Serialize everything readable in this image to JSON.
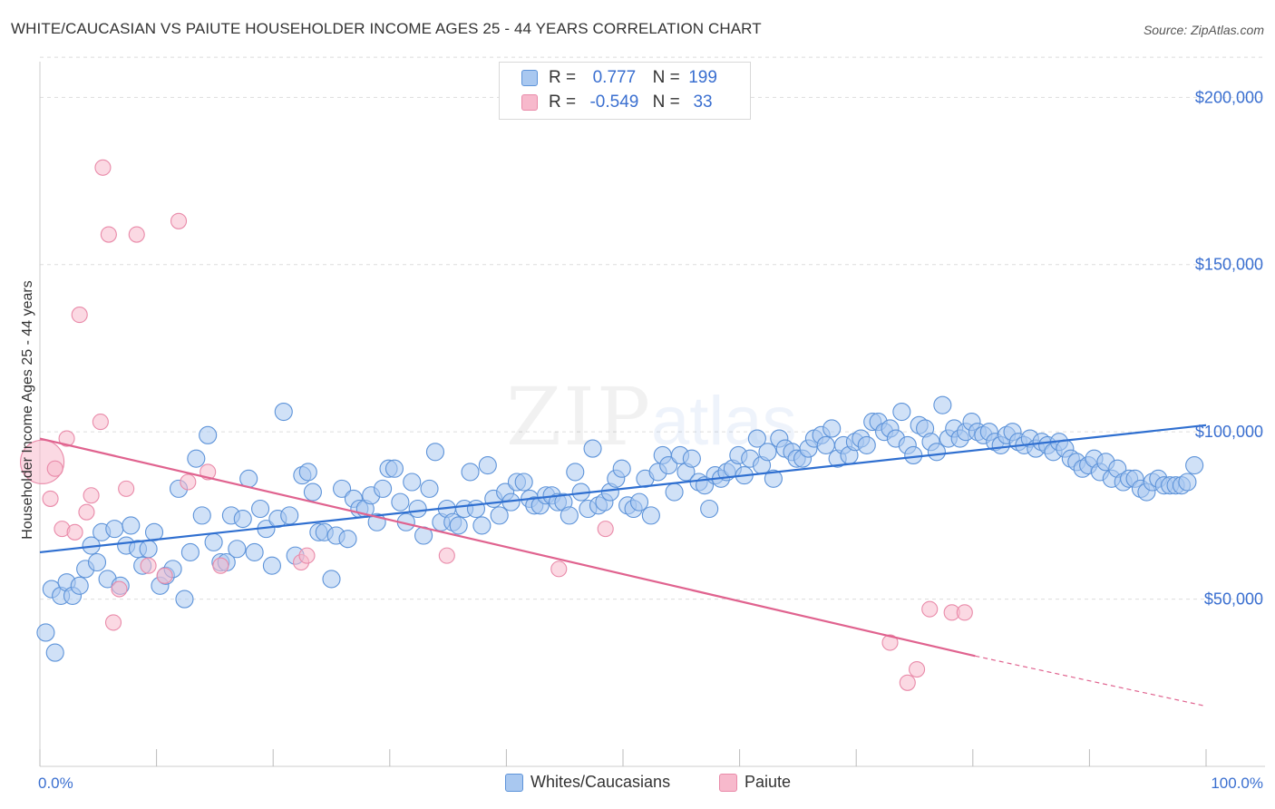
{
  "header": {
    "title": "WHITE/CAUCASIAN VS PAIUTE HOUSEHOLDER INCOME AGES 25 - 44 YEARS CORRELATION CHART",
    "source": "Source: ZipAtlas.com"
  },
  "legend": {
    "rows": [
      {
        "r_label": "R =",
        "r_value": "0.777",
        "n_label": "N =",
        "n_value": "199"
      },
      {
        "r_label": "R =",
        "r_value": "-0.549",
        "n_label": "N =",
        "n_value": "33"
      }
    ]
  },
  "bottom_legend": [
    "Whites/Caucasians",
    "Paiute"
  ],
  "colors": {
    "blue_fill": "#a9c8f0",
    "blue_stroke": "#5d93d9",
    "blue_line": "#2f6fd0",
    "pink_fill": "#f7b9cc",
    "pink_stroke": "#e98aa9",
    "pink_line": "#e0638f",
    "label": "#3a6fd0"
  },
  "chart_data": {
    "type": "scatter",
    "title": "WHITE/CAUCASIAN VS PAIUTE HOUSEHOLDER INCOME AGES 25 - 44 YEARS CORRELATION CHART",
    "xlabel": "",
    "ylabel": "Householder Income Ages 25 - 44 years",
    "xlim": [
      0,
      100
    ],
    "ylim": [
      0,
      215000
    ],
    "x_tick_labels": [
      "0.0%",
      "100.0%"
    ],
    "y_ticks": [
      50000,
      100000,
      150000,
      200000
    ],
    "y_tick_labels": [
      "$50,000",
      "$100,000",
      "$150,000",
      "$200,000"
    ],
    "grid": true,
    "watermark": "ZIPatlas",
    "series": [
      {
        "name": "Whites/Caucasians",
        "r": 0.777,
        "n": 199,
        "trend": {
          "x": [
            0,
            100
          ],
          "y": [
            64000,
            102000
          ]
        },
        "points": [
          [
            0.5,
            40000
          ],
          [
            1.0,
            53000
          ],
          [
            1.3,
            34000
          ],
          [
            1.8,
            51000
          ],
          [
            2.3,
            55000
          ],
          [
            2.8,
            51000
          ],
          [
            3.4,
            54000
          ],
          [
            3.9,
            59000
          ],
          [
            4.4,
            66000
          ],
          [
            4.9,
            61000
          ],
          [
            5.3,
            70000
          ],
          [
            5.8,
            56000
          ],
          [
            6.4,
            71000
          ],
          [
            6.9,
            54000
          ],
          [
            7.4,
            66000
          ],
          [
            7.8,
            72000
          ],
          [
            8.4,
            65000
          ],
          [
            8.8,
            60000
          ],
          [
            9.3,
            65000
          ],
          [
            9.8,
            70000
          ],
          [
            10.3,
            54000
          ],
          [
            10.8,
            57000
          ],
          [
            11.4,
            59000
          ],
          [
            11.9,
            83000
          ],
          [
            12.4,
            50000
          ],
          [
            12.9,
            64000
          ],
          [
            13.4,
            92000
          ],
          [
            13.9,
            75000
          ],
          [
            14.4,
            99000
          ],
          [
            14.9,
            67000
          ],
          [
            15.5,
            61000
          ],
          [
            16.0,
            61000
          ],
          [
            16.4,
            75000
          ],
          [
            16.9,
            65000
          ],
          [
            17.4,
            74000
          ],
          [
            17.9,
            86000
          ],
          [
            18.4,
            64000
          ],
          [
            18.9,
            77000
          ],
          [
            19.4,
            71000
          ],
          [
            19.9,
            60000
          ],
          [
            20.4,
            74000
          ],
          [
            20.9,
            106000
          ],
          [
            21.4,
            75000
          ],
          [
            21.9,
            63000
          ],
          [
            22.5,
            87000
          ],
          [
            23.0,
            88000
          ],
          [
            23.4,
            82000
          ],
          [
            23.9,
            70000
          ],
          [
            24.4,
            70000
          ],
          [
            25.0,
            56000
          ],
          [
            25.4,
            69000
          ],
          [
            25.9,
            83000
          ],
          [
            26.4,
            68000
          ],
          [
            26.9,
            80000
          ],
          [
            27.4,
            77000
          ],
          [
            27.9,
            77000
          ],
          [
            28.4,
            81000
          ],
          [
            28.9,
            73000
          ],
          [
            29.4,
            83000
          ],
          [
            29.9,
            89000
          ],
          [
            30.4,
            89000
          ],
          [
            30.9,
            79000
          ],
          [
            31.4,
            73000
          ],
          [
            31.9,
            85000
          ],
          [
            32.4,
            77000
          ],
          [
            32.9,
            69000
          ],
          [
            33.4,
            83000
          ],
          [
            33.9,
            94000
          ],
          [
            34.4,
            73000
          ],
          [
            34.9,
            77000
          ],
          [
            35.4,
            73000
          ],
          [
            35.9,
            72000
          ],
          [
            36.4,
            77000
          ],
          [
            36.9,
            88000
          ],
          [
            37.4,
            77000
          ],
          [
            37.9,
            72000
          ],
          [
            38.4,
            90000
          ],
          [
            38.9,
            80000
          ],
          [
            39.4,
            75000
          ],
          [
            39.9,
            82000
          ],
          [
            40.4,
            79000
          ],
          [
            40.9,
            85000
          ],
          [
            41.5,
            85000
          ],
          [
            42.0,
            80000
          ],
          [
            42.4,
            78000
          ],
          [
            42.9,
            78000
          ],
          [
            43.4,
            81000
          ],
          [
            43.9,
            81000
          ],
          [
            44.4,
            79000
          ],
          [
            44.9,
            79000
          ],
          [
            45.4,
            75000
          ],
          [
            45.9,
            88000
          ],
          [
            46.4,
            82000
          ],
          [
            47.0,
            77000
          ],
          [
            47.4,
            95000
          ],
          [
            47.9,
            78000
          ],
          [
            48.4,
            79000
          ],
          [
            48.9,
            82000
          ],
          [
            49.4,
            86000
          ],
          [
            49.9,
            89000
          ],
          [
            50.4,
            78000
          ],
          [
            50.9,
            77000
          ],
          [
            51.4,
            79000
          ],
          [
            51.9,
            86000
          ],
          [
            52.4,
            75000
          ],
          [
            53.0,
            88000
          ],
          [
            53.4,
            93000
          ],
          [
            53.9,
            90000
          ],
          [
            54.4,
            82000
          ],
          [
            54.9,
            93000
          ],
          [
            55.4,
            88000
          ],
          [
            55.9,
            92000
          ],
          [
            56.5,
            85000
          ],
          [
            57.0,
            84000
          ],
          [
            57.4,
            77000
          ],
          [
            57.9,
            87000
          ],
          [
            58.4,
            86000
          ],
          [
            58.9,
            88000
          ],
          [
            59.4,
            89000
          ],
          [
            59.9,
            93000
          ],
          [
            60.4,
            87000
          ],
          [
            60.9,
            92000
          ],
          [
            61.5,
            98000
          ],
          [
            61.9,
            90000
          ],
          [
            62.4,
            94000
          ],
          [
            62.9,
            86000
          ],
          [
            63.4,
            98000
          ],
          [
            63.9,
            95000
          ],
          [
            64.5,
            94000
          ],
          [
            64.9,
            92000
          ],
          [
            65.4,
            92000
          ],
          [
            65.9,
            95000
          ],
          [
            66.4,
            98000
          ],
          [
            67.0,
            99000
          ],
          [
            67.4,
            96000
          ],
          [
            67.9,
            101000
          ],
          [
            68.4,
            92000
          ],
          [
            68.9,
            96000
          ],
          [
            69.4,
            93000
          ],
          [
            69.9,
            97000
          ],
          [
            70.4,
            98000
          ],
          [
            70.9,
            96000
          ],
          [
            71.4,
            103000
          ],
          [
            71.9,
            103000
          ],
          [
            72.4,
            100000
          ],
          [
            72.9,
            101000
          ],
          [
            73.4,
            98000
          ],
          [
            73.9,
            106000
          ],
          [
            74.4,
            96000
          ],
          [
            74.9,
            93000
          ],
          [
            75.4,
            102000
          ],
          [
            75.9,
            101000
          ],
          [
            76.4,
            97000
          ],
          [
            76.9,
            94000
          ],
          [
            77.4,
            108000
          ],
          [
            77.9,
            98000
          ],
          [
            78.4,
            101000
          ],
          [
            78.9,
            98000
          ],
          [
            79.4,
            100000
          ],
          [
            79.9,
            103000
          ],
          [
            80.4,
            100000
          ],
          [
            80.9,
            99000
          ],
          [
            81.4,
            100000
          ],
          [
            81.9,
            97000
          ],
          [
            82.4,
            96000
          ],
          [
            82.9,
            99000
          ],
          [
            83.4,
            100000
          ],
          [
            83.9,
            97000
          ],
          [
            84.4,
            96000
          ],
          [
            84.9,
            98000
          ],
          [
            85.4,
            95000
          ],
          [
            85.9,
            97000
          ],
          [
            86.4,
            96000
          ],
          [
            86.9,
            94000
          ],
          [
            87.4,
            97000
          ],
          [
            87.9,
            95000
          ],
          [
            88.4,
            92000
          ],
          [
            88.9,
            91000
          ],
          [
            89.4,
            89000
          ],
          [
            89.9,
            90000
          ],
          [
            90.4,
            92000
          ],
          [
            90.9,
            88000
          ],
          [
            91.4,
            91000
          ],
          [
            91.9,
            86000
          ],
          [
            92.4,
            89000
          ],
          [
            92.9,
            85000
          ],
          [
            93.4,
            86000
          ],
          [
            93.9,
            86000
          ],
          [
            94.4,
            83000
          ],
          [
            94.9,
            82000
          ],
          [
            95.4,
            85000
          ],
          [
            95.9,
            86000
          ],
          [
            96.4,
            84000
          ],
          [
            96.9,
            84000
          ],
          [
            97.4,
            84000
          ],
          [
            97.9,
            84000
          ],
          [
            98.4,
            85000
          ],
          [
            99.0,
            90000
          ]
        ]
      },
      {
        "name": "Paiute",
        "r": -0.549,
        "n": 33,
        "trend": {
          "x": [
            0,
            80.2
          ],
          "y": [
            98000,
            33000
          ],
          "dashed_to": {
            "x": 100,
            "y": 18000
          }
        },
        "points": [
          [
            0.2,
            91000
          ],
          [
            0.9,
            80000
          ],
          [
            1.3,
            89000
          ],
          [
            1.9,
            71000
          ],
          [
            2.3,
            98000
          ],
          [
            3.0,
            70000
          ],
          [
            3.4,
            135000
          ],
          [
            4.0,
            76000
          ],
          [
            4.4,
            81000
          ],
          [
            5.2,
            103000
          ],
          [
            5.4,
            179000
          ],
          [
            5.9,
            159000
          ],
          [
            6.3,
            43000
          ],
          [
            6.8,
            53000
          ],
          [
            7.4,
            83000
          ],
          [
            8.3,
            159000
          ],
          [
            9.3,
            60000
          ],
          [
            10.7,
            57000
          ],
          [
            11.9,
            163000
          ],
          [
            12.7,
            85000
          ],
          [
            14.4,
            88000
          ],
          [
            15.5,
            60000
          ],
          [
            22.4,
            61000
          ],
          [
            22.9,
            63000
          ],
          [
            34.9,
            63000
          ],
          [
            44.5,
            59000
          ],
          [
            48.5,
            71000
          ],
          [
            72.9,
            37000
          ],
          [
            74.4,
            25000
          ],
          [
            75.2,
            29000
          ],
          [
            76.3,
            47000
          ],
          [
            78.2,
            46000
          ],
          [
            79.3,
            46000
          ]
        ]
      }
    ]
  }
}
